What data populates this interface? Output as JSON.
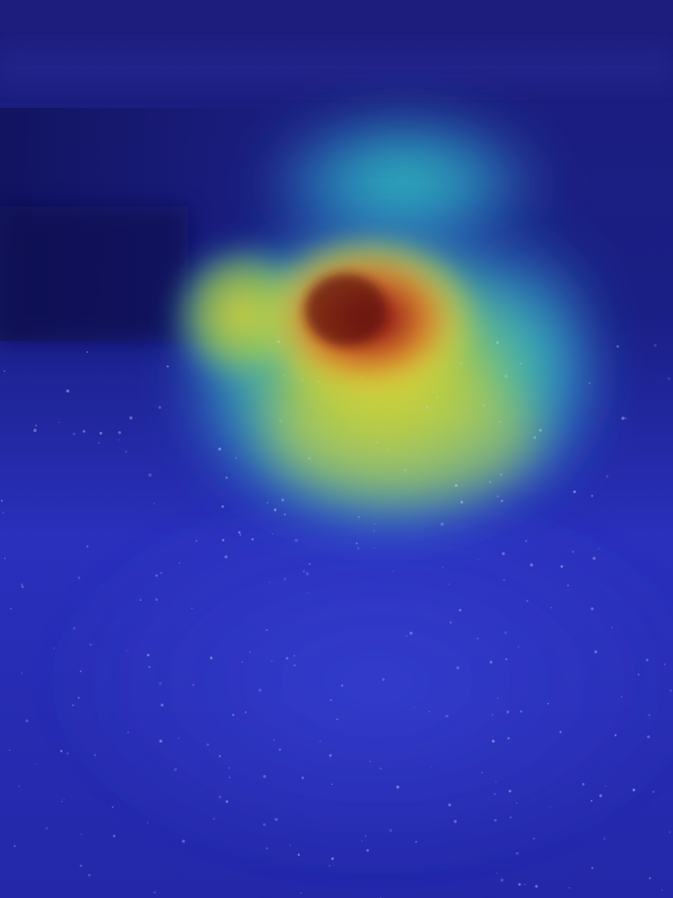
{
  "image": {
    "subject": "heatmap-overlay-photo",
    "palette": {
      "deep_navy": "#14197a",
      "mid_blue": "#2a2ec0",
      "bright_blue": "#3340d6",
      "cyan": "#2fb8c8",
      "green": "#7ccf4c",
      "yellow": "#d8cf3a",
      "orange": "#e0802a",
      "red": "#a3281e",
      "dark_red": "#6c1414"
    }
  }
}
